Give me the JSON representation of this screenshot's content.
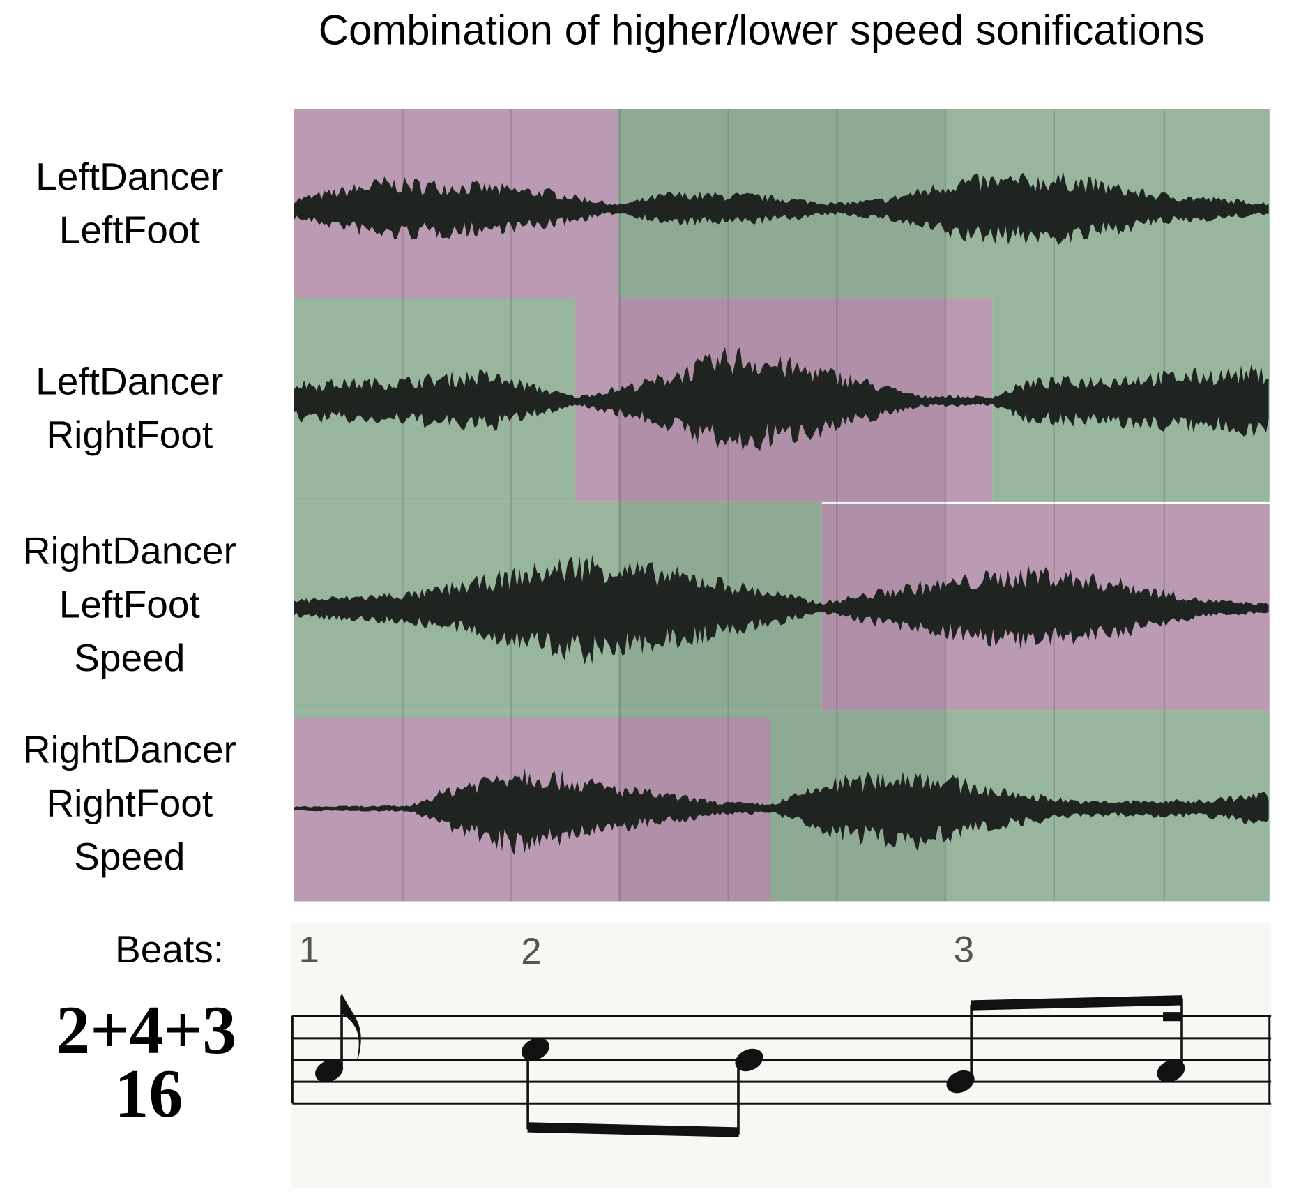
{
  "title": "Combination of higher/lower speed sonifications",
  "tracks": [
    {
      "lines": [
        "LeftDancer",
        "LeftFoot"
      ]
    },
    {
      "lines": [
        "LeftDancer",
        "RightFoot"
      ]
    },
    {
      "lines": [
        "RightDancer",
        "LeftFoot",
        "Speed"
      ]
    },
    {
      "lines": [
        "RightDancer",
        "RightFoot",
        "Speed"
      ]
    }
  ],
  "beats_label": "Beats:",
  "beats": [
    "1",
    "2",
    "3"
  ],
  "time_signature": {
    "top": "2+4+3",
    "bottom": "16"
  }
}
